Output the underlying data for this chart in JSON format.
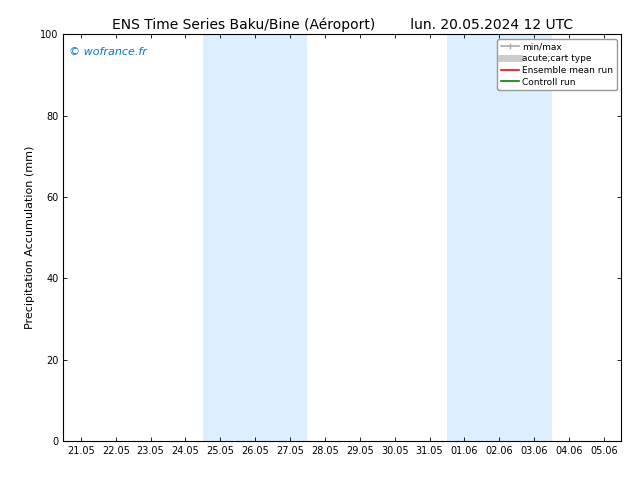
{
  "title_left": "ENS Time Series Baku/Bine (Aéroport)",
  "title_right": "lun. 20.05.2024 12 UTC",
  "ylabel": "Precipitation Accumulation (mm)",
  "ylim": [
    0,
    100
  ],
  "yticks": [
    0,
    20,
    40,
    60,
    80,
    100
  ],
  "xtick_labels": [
    "21.05",
    "22.05",
    "23.05",
    "24.05",
    "25.05",
    "26.05",
    "27.05",
    "28.05",
    "29.05",
    "30.05",
    "31.05",
    "01.06",
    "02.06",
    "03.06",
    "04.06",
    "05.06"
  ],
  "watermark": "© wofrance.fr",
  "watermark_color": "#0077cc",
  "shade_regions": [
    {
      "xstart": 4,
      "xend": 5,
      "color": "#ddeeff"
    },
    {
      "xstart": 5,
      "xend": 6,
      "color": "#ddeeff"
    },
    {
      "xstart": 11,
      "xend": 12,
      "color": "#ddeeff"
    },
    {
      "xstart": 12,
      "xend": 13,
      "color": "#ddeeff"
    }
  ],
  "bg_color": "#ffffff",
  "title_fontsize": 10,
  "tick_fontsize": 7,
  "label_fontsize": 8,
  "watermark_fontsize": 8
}
